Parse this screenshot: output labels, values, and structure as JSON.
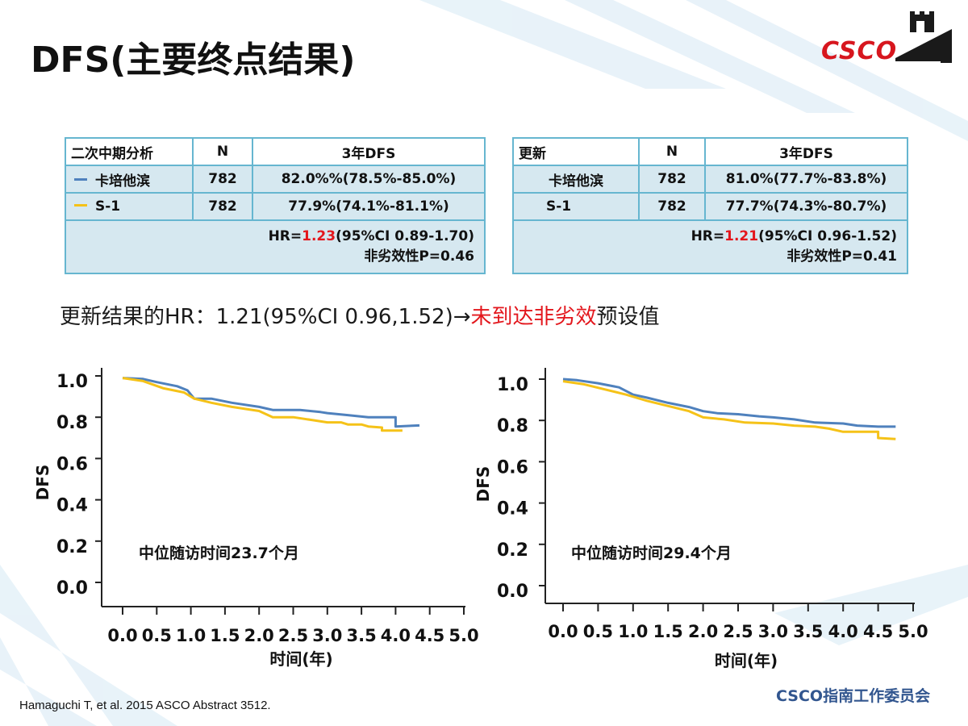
{
  "slide": {
    "title": "DFS(主要终点结果)",
    "logo_text": "CSCO",
    "update_note": {
      "prefix": "更新结果的HR：1.21(95%CI 0.96,1.52)→",
      "highlight": "未到达非劣效",
      "suffix": "预设值"
    },
    "reference": "Hamaguchi T, et al. 2015 ASCO Abstract 3512.",
    "org": "CSCO指南工作委员会"
  },
  "colors": {
    "capecitabine": "#4f81bd",
    "s1": "#f5c218",
    "table_border": "#66b6d0",
    "table_fill": "#d6e8f0",
    "highlight_red": "#e3171d",
    "org_blue": "#32568f"
  },
  "tables": [
    {
      "header": [
        "二次中期分析",
        "N",
        "3年DFS"
      ],
      "rows": [
        {
          "arm": "卡培他滨",
          "n": "782",
          "dfs": "82.0%%(78.5%-85.0%)",
          "swatch": "#4f81bd"
        },
        {
          "arm": "S-1",
          "n": "782",
          "dfs": "77.9%(74.1%-81.1%)",
          "swatch": "#f5c218"
        }
      ],
      "hr_prefix": "HR=",
      "hr_value": "1.23",
      "hr_suffix": "(95%CI 0.89-1.70)",
      "noninferiority": "非劣效性P=0.46"
    },
    {
      "header": [
        "更新",
        "N",
        "3年DFS"
      ],
      "rows": [
        {
          "arm": "卡培他滨",
          "n": "782",
          "dfs": "81.0%(77.7%-83.8%)"
        },
        {
          "arm": "S-1",
          "n": "782",
          "dfs": "77.7%(74.3%-80.7%)"
        }
      ],
      "hr_prefix": "HR=",
      "hr_value": "1.21",
      "hr_suffix": "(95%CI 0.96-1.52)",
      "noninferiority": "非劣效性P=0.41"
    }
  ],
  "chart_data": [
    {
      "type": "line",
      "xlabel": "时间(年)",
      "ylabel": "DFS",
      "xlim": [
        0,
        5
      ],
      "ylim": [
        0,
        1
      ],
      "x_ticks": [
        "0.0",
        "0.5",
        "1.0",
        "1.5",
        "2.0",
        "2.5",
        "3.0",
        "3.5",
        "4.0",
        "4.5",
        "5.0"
      ],
      "y_ticks": [
        "0.0",
        "0.2",
        "0.4",
        "0.6",
        "0.8",
        "1.0"
      ],
      "annotation": "中位随访时间23.7个月",
      "series": [
        {
          "color": "#4f81bd",
          "points": [
            [
              0,
              0.99
            ],
            [
              0.3,
              0.985
            ],
            [
              0.5,
              0.97
            ],
            [
              0.8,
              0.95
            ],
            [
              0.95,
              0.93
            ],
            [
              1.05,
              0.89
            ],
            [
              1.3,
              0.89
            ],
            [
              1.6,
              0.87
            ],
            [
              2.0,
              0.85
            ],
            [
              2.2,
              0.835
            ],
            [
              2.6,
              0.835
            ],
            [
              2.9,
              0.825
            ],
            [
              3.0,
              0.82
            ],
            [
              3.3,
              0.81
            ],
            [
              3.6,
              0.8
            ],
            [
              3.8,
              0.8
            ],
            [
              4.0,
              0.8
            ],
            [
              4.0,
              0.755
            ],
            [
              4.35,
              0.76
            ]
          ]
        },
        {
          "color": "#f5c218",
          "points": [
            [
              0,
              0.99
            ],
            [
              0.3,
              0.975
            ],
            [
              0.6,
              0.94
            ],
            [
              0.9,
              0.92
            ],
            [
              1.05,
              0.89
            ],
            [
              1.3,
              0.87
            ],
            [
              1.6,
              0.85
            ],
            [
              2.0,
              0.83
            ],
            [
              2.2,
              0.8
            ],
            [
              2.5,
              0.8
            ],
            [
              2.8,
              0.785
            ],
            [
              3.0,
              0.775
            ],
            [
              3.2,
              0.775
            ],
            [
              3.3,
              0.765
            ],
            [
              3.5,
              0.765
            ],
            [
              3.6,
              0.755
            ],
            [
              3.8,
              0.75
            ],
            [
              3.8,
              0.735
            ],
            [
              4.1,
              0.735
            ]
          ]
        }
      ]
    },
    {
      "type": "line",
      "xlabel": "时间(年)",
      "ylabel": "DFS",
      "xlim": [
        0,
        5
      ],
      "ylim": [
        0,
        1
      ],
      "x_ticks": [
        "0.0",
        "0.5",
        "1.0",
        "1.5",
        "2.0",
        "2.5",
        "3.0",
        "3.5",
        "4.0",
        "4.5",
        "5.0"
      ],
      "y_ticks": [
        "0.0",
        "0.2",
        "0.4",
        "0.6",
        "0.8",
        "1.0"
      ],
      "annotation": "中位随访时间29.4个月",
      "series": [
        {
          "color": "#4f81bd",
          "points": [
            [
              0,
              1.0
            ],
            [
              0.2,
              0.995
            ],
            [
              0.5,
              0.98
            ],
            [
              0.8,
              0.96
            ],
            [
              1.0,
              0.925
            ],
            [
              1.2,
              0.91
            ],
            [
              1.5,
              0.885
            ],
            [
              1.8,
              0.865
            ],
            [
              2.0,
              0.845
            ],
            [
              2.2,
              0.835
            ],
            [
              2.5,
              0.83
            ],
            [
              2.8,
              0.82
            ],
            [
              3.0,
              0.815
            ],
            [
              3.3,
              0.805
            ],
            [
              3.6,
              0.79
            ],
            [
              4.0,
              0.785
            ],
            [
              4.2,
              0.775
            ],
            [
              4.5,
              0.77
            ],
            [
              4.75,
              0.77
            ]
          ]
        },
        {
          "color": "#f5c218",
          "points": [
            [
              0,
              0.99
            ],
            [
              0.3,
              0.975
            ],
            [
              0.6,
              0.95
            ],
            [
              0.9,
              0.925
            ],
            [
              1.2,
              0.895
            ],
            [
              1.5,
              0.87
            ],
            [
              1.8,
              0.845
            ],
            [
              2.0,
              0.815
            ],
            [
              2.3,
              0.805
            ],
            [
              2.6,
              0.79
            ],
            [
              3.0,
              0.785
            ],
            [
              3.3,
              0.775
            ],
            [
              3.6,
              0.77
            ],
            [
              3.8,
              0.76
            ],
            [
              4.0,
              0.745
            ],
            [
              4.3,
              0.745
            ],
            [
              4.5,
              0.745
            ],
            [
              4.5,
              0.715
            ],
            [
              4.75,
              0.71
            ]
          ]
        }
      ]
    }
  ]
}
